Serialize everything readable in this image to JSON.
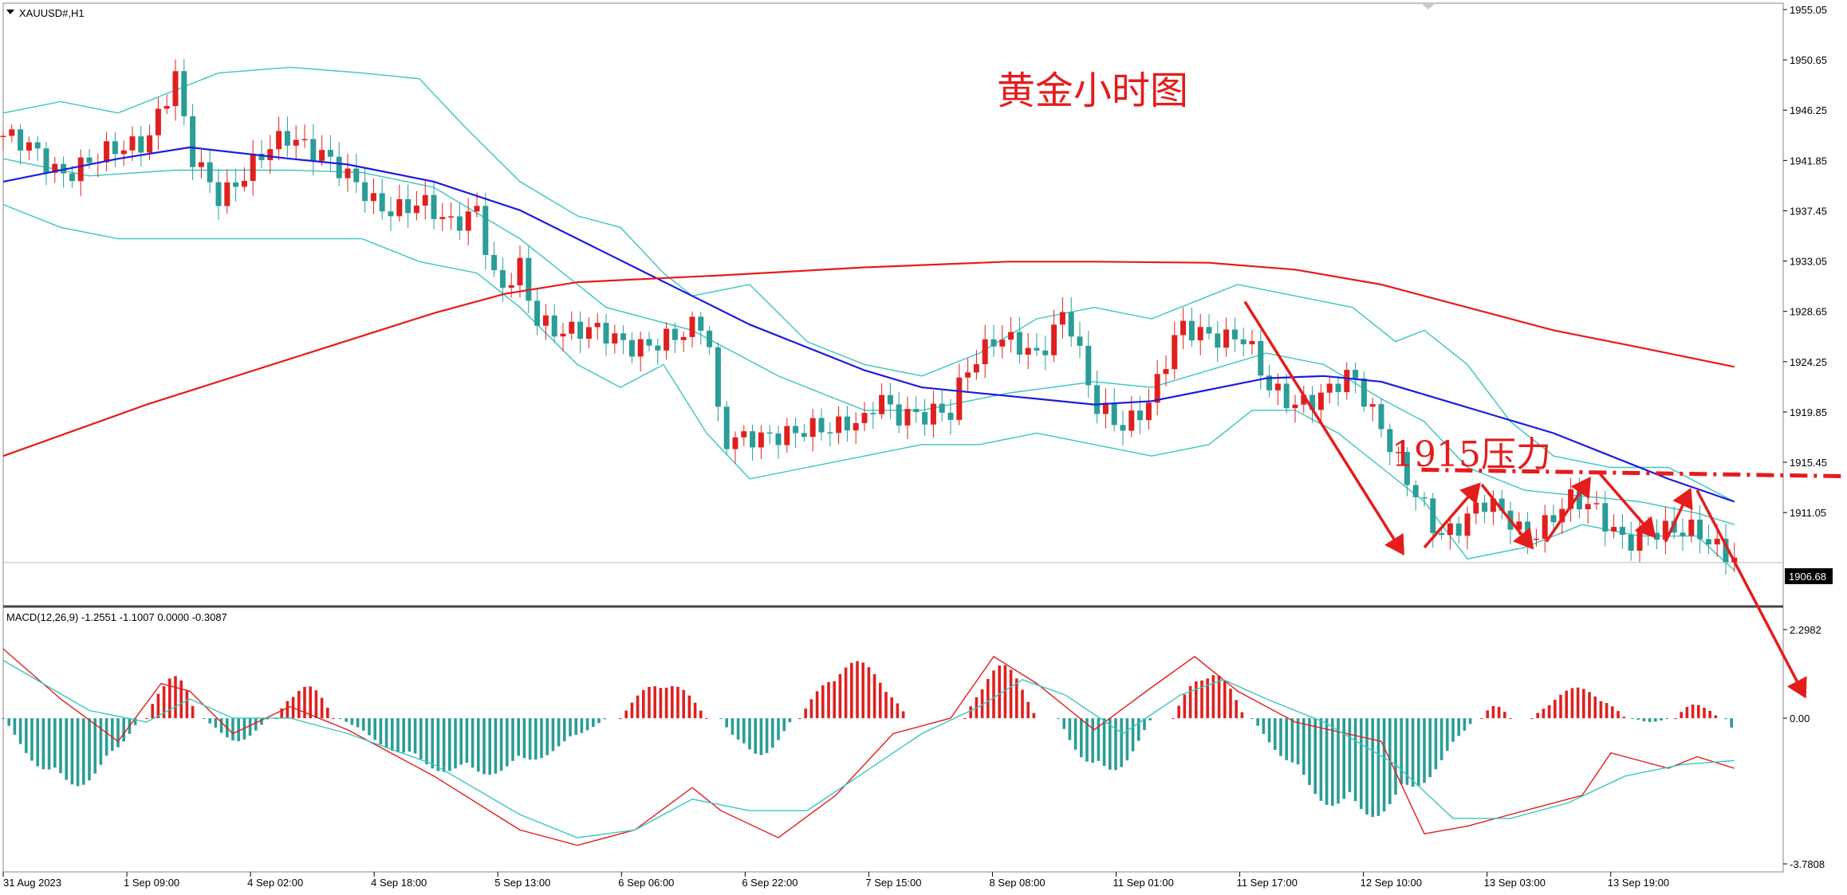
{
  "header": {
    "symbol_label": "XAUUSD#,H1"
  },
  "annotations": {
    "title": "黄金小时图",
    "resistance_label": "1915压力"
  },
  "price_axis": {
    "ticks": [
      "1955.05",
      "1950.65",
      "1946.25",
      "1941.85",
      "1937.45",
      "1933.05",
      "1928.65",
      "1924.25",
      "1919.85",
      "1915.45",
      "1911.05"
    ],
    "current_price": "1906.68"
  },
  "macd": {
    "label": "MACD(12,26,9) -1.2551 -1.1007 0.0000 -0.3087",
    "ticks": [
      "2.2982",
      "0.00",
      "-3.7808"
    ]
  },
  "time_axis": {
    "ticks": [
      "31 Aug 2023",
      "1 Sep 09:00",
      "4 Sep 02:00",
      "4 Sep 18:00",
      "5 Sep 13:00",
      "6 Sep 06:00",
      "6 Sep 22:00",
      "7 Sep 15:00",
      "8 Sep 08:00",
      "11 Sep 01:00",
      "11 Sep 17:00",
      "12 Sep 10:00",
      "13 Sep 03:00",
      "13 Sep 19:00"
    ]
  },
  "colors": {
    "bull": "#e0201e",
    "bear": "#2a9d96",
    "ma_blue": "#1d1ae0",
    "ma_red": "#e51c1c",
    "bands": "#39c6c0",
    "arrows": "#e51c1c",
    "macd_signal": "#e51c1c",
    "macd_line": "#39c6c0"
  },
  "chart_data": {
    "type": "line",
    "symbol": "XAUUSD#",
    "timeframe": "H1",
    "y_range": [
      1904.3,
      1955.05
    ],
    "current_price": 1906.68,
    "resistance_level": 1915,
    "close_path": [
      [
        0,
        1944
      ],
      [
        40,
        1941
      ],
      [
        70,
        1942
      ],
      [
        100,
        1944
      ],
      [
        120,
        1949
      ],
      [
        130,
        1942
      ],
      [
        150,
        1939
      ],
      [
        180,
        1942
      ],
      [
        200,
        1944
      ],
      [
        220,
        1943
      ],
      [
        240,
        1940
      ],
      [
        260,
        1938
      ],
      [
        290,
        1938
      ],
      [
        310,
        1936
      ],
      [
        330,
        1938
      ],
      [
        345,
        1930
      ],
      [
        360,
        1932
      ],
      [
        370,
        1928
      ],
      [
        400,
        1927
      ],
      [
        430,
        1926
      ],
      [
        450,
        1926
      ],
      [
        470,
        1926
      ],
      [
        490,
        1928
      ],
      [
        500,
        1918
      ],
      [
        530,
        1917
      ],
      [
        560,
        1919
      ],
      [
        580,
        1918
      ],
      [
        600,
        1919
      ],
      [
        610,
        1922
      ],
      [
        620,
        1920
      ],
      [
        640,
        1919
      ],
      [
        660,
        1920
      ],
      [
        670,
        1924
      ],
      [
        690,
        1926
      ],
      [
        720,
        1925
      ],
      [
        740,
        1929
      ],
      [
        760,
        1920
      ],
      [
        780,
        1919
      ],
      [
        800,
        1921
      ],
      [
        820,
        1927
      ],
      [
        840,
        1927
      ],
      [
        865,
        1926
      ],
      [
        880,
        1922
      ],
      [
        900,
        1921
      ],
      [
        920,
        1921
      ],
      [
        940,
        1923
      ],
      [
        960,
        1919
      ],
      [
        980,
        1913
      ],
      [
        1000,
        1909
      ],
      [
        1030,
        1912
      ],
      [
        1060,
        1909
      ],
      [
        1090,
        1912
      ],
      [
        1110,
        1911
      ],
      [
        1130,
        1909
      ],
      [
        1160,
        1909
      ],
      [
        1180,
        1910
      ],
      [
        1206,
        1906.68
      ]
    ],
    "moving_averages": [
      {
        "color": "blue",
        "points": [
          [
            0,
            1940
          ],
          [
            80,
            1942
          ],
          [
            130,
            1943
          ],
          [
            200,
            1942
          ],
          [
            240,
            1941.5
          ],
          [
            300,
            1940
          ],
          [
            360,
            1937.5
          ],
          [
            400,
            1935
          ],
          [
            440,
            1932.5
          ],
          [
            480,
            1930
          ],
          [
            520,
            1927.5
          ],
          [
            560,
            1925.5
          ],
          [
            600,
            1923.5
          ],
          [
            640,
            1922
          ],
          [
            680,
            1921.5
          ],
          [
            720,
            1921
          ],
          [
            760,
            1920.5
          ],
          [
            800,
            1920.8
          ],
          [
            840,
            1921.8
          ],
          [
            880,
            1922.8
          ],
          [
            920,
            1923
          ],
          [
            960,
            1922.5
          ],
          [
            1000,
            1921
          ],
          [
            1040,
            1919.5
          ],
          [
            1080,
            1918
          ],
          [
            1120,
            1916
          ],
          [
            1160,
            1914
          ],
          [
            1206,
            1912
          ]
        ]
      },
      {
        "color": "red",
        "points": [
          [
            0,
            1916
          ],
          [
            100,
            1920.5
          ],
          [
            200,
            1924.5
          ],
          [
            300,
            1928.5
          ],
          [
            350,
            1930.2
          ],
          [
            400,
            1931.2
          ],
          [
            500,
            1931.8
          ],
          [
            600,
            1932.5
          ],
          [
            700,
            1933
          ],
          [
            760,
            1933
          ],
          [
            840,
            1932.9
          ],
          [
            900,
            1932.3
          ],
          [
            960,
            1931
          ],
          [
            1020,
            1929
          ],
          [
            1080,
            1927
          ],
          [
            1140,
            1925.5
          ],
          [
            1206,
            1923.8
          ]
        ]
      }
    ],
    "bollinger": [
      {
        "points": [
          [
            0,
            1946
          ],
          [
            40,
            1947
          ],
          [
            80,
            1946
          ],
          [
            120,
            1948
          ],
          [
            150,
            1949.5
          ],
          [
            200,
            1950
          ],
          [
            250,
            1949.5
          ],
          [
            290,
            1949
          ],
          [
            320,
            1945
          ],
          [
            360,
            1940
          ],
          [
            400,
            1937
          ],
          [
            430,
            1936
          ],
          [
            460,
            1932
          ],
          [
            480,
            1930
          ],
          [
            520,
            1931
          ],
          [
            560,
            1926
          ],
          [
            600,
            1924
          ],
          [
            640,
            1923
          ],
          [
            680,
            1925
          ],
          [
            720,
            1928
          ],
          [
            760,
            1929
          ],
          [
            800,
            1928
          ],
          [
            840,
            1930
          ],
          [
            860,
            1931
          ],
          [
            900,
            1930
          ],
          [
            940,
            1929
          ],
          [
            970,
            1926
          ],
          [
            990,
            1927
          ],
          [
            1020,
            1924
          ],
          [
            1050,
            1919
          ],
          [
            1080,
            1916
          ],
          [
            1120,
            1915
          ],
          [
            1160,
            1915
          ],
          [
            1206,
            1912
          ]
        ]
      },
      {
        "points": [
          [
            0,
            1938
          ],
          [
            40,
            1936
          ],
          [
            80,
            1935
          ],
          [
            120,
            1935
          ],
          [
            150,
            1935
          ],
          [
            200,
            1935
          ],
          [
            250,
            1935
          ],
          [
            290,
            1933
          ],
          [
            330,
            1932
          ],
          [
            360,
            1929
          ],
          [
            400,
            1924
          ],
          [
            430,
            1922
          ],
          [
            460,
            1924
          ],
          [
            490,
            1918
          ],
          [
            520,
            1914
          ],
          [
            560,
            1915
          ],
          [
            600,
            1916
          ],
          [
            640,
            1917
          ],
          [
            680,
            1917
          ],
          [
            720,
            1918
          ],
          [
            760,
            1917
          ],
          [
            800,
            1916
          ],
          [
            840,
            1917
          ],
          [
            870,
            1920
          ],
          [
            900,
            1920
          ],
          [
            930,
            1918
          ],
          [
            960,
            1915
          ],
          [
            990,
            1912
          ],
          [
            1020,
            1907
          ],
          [
            1060,
            1908
          ],
          [
            1100,
            1910
          ],
          [
            1140,
            1909
          ],
          [
            1180,
            1909
          ],
          [
            1206,
            1906
          ]
        ]
      },
      {
        "points": [
          [
            0,
            1942
          ],
          [
            60,
            1940.5
          ],
          [
            120,
            1941
          ],
          [
            200,
            1941
          ],
          [
            250,
            1940.8
          ],
          [
            300,
            1939.5
          ],
          [
            360,
            1935
          ],
          [
            420,
            1929
          ],
          [
            480,
            1927
          ],
          [
            540,
            1923
          ],
          [
            600,
            1920
          ],
          [
            640,
            1920
          ],
          [
            700,
            1921.5
          ],
          [
            760,
            1922.5
          ],
          [
            800,
            1922
          ],
          [
            840,
            1923.5
          ],
          [
            880,
            1925
          ],
          [
            920,
            1924
          ],
          [
            960,
            1921
          ],
          [
            990,
            1919
          ],
          [
            1020,
            1915
          ],
          [
            1060,
            1913
          ],
          [
            1100,
            1912.5
          ],
          [
            1140,
            1912
          ],
          [
            1180,
            1911
          ],
          [
            1206,
            1910
          ]
        ]
      }
    ],
    "arrows": [
      {
        "from": [
          865,
          1929.5
        ],
        "to": [
          975,
          1907.5
        ]
      },
      {
        "from": [
          990,
          1908
        ],
        "to": [
          1028,
          1913.5
        ]
      },
      {
        "from": [
          1030,
          1913.5
        ],
        "to": [
          1065,
          1908
        ]
      },
      {
        "from": [
          1075,
          1908.5
        ],
        "to": [
          1105,
          1914
        ]
      },
      {
        "from": [
          1112,
          1914.5
        ],
        "to": [
          1150,
          1909
        ]
      },
      {
        "from": [
          1158,
          1908.5
        ],
        "to": [
          1175,
          1913
        ]
      },
      {
        "from": [
          1180,
          1913
        ],
        "to": [
          1255,
          1895
        ]
      }
    ],
    "resistance_line": {
      "from": [
        988,
        1914.8
      ],
      "to": [
        1350,
        1914.1
      ]
    },
    "macd": {
      "y_range": [
        -3.7808,
        2.2982
      ],
      "histogram_positive_ranges": [
        [
          100,
          135,
          1.2
        ],
        [
          190,
          230,
          0.9
        ],
        [
          430,
          490,
          1.0
        ],
        [
          555,
          630,
          1.5
        ],
        [
          670,
          720,
          1.4
        ],
        [
          815,
          865,
          1.3
        ],
        [
          1030,
          1050,
          0.35
        ],
        [
          1065,
          1130,
          0.8
        ],
        [
          1165,
          1195,
          0.4
        ]
      ],
      "histogram_negative_ranges": [
        [
          0,
          95,
          -1.8
        ],
        [
          140,
          185,
          -0.6
        ],
        [
          235,
          420,
          -1.5
        ],
        [
          500,
          550,
          -1.0
        ],
        [
          735,
          800,
          -1.5
        ],
        [
          870,
          1025,
          -2.6
        ],
        [
          1135,
          1160,
          -0.1
        ],
        [
          1200,
          1206,
          -0.3
        ]
      ],
      "signal": [
        [
          0,
          1.8
        ],
        [
          40,
          0.5
        ],
        [
          80,
          -0.6
        ],
        [
          110,
          0.9
        ],
        [
          130,
          0.7
        ],
        [
          160,
          -0.4
        ],
        [
          200,
          0.3
        ],
        [
          240,
          -0.3
        ],
        [
          300,
          -1.5
        ],
        [
          360,
          -2.9
        ],
        [
          400,
          -3.3
        ],
        [
          440,
          -2.9
        ],
        [
          480,
          -1.8
        ],
        [
          500,
          -2.4
        ],
        [
          540,
          -3.1
        ],
        [
          580,
          -2.0
        ],
        [
          620,
          -0.4
        ],
        [
          660,
          0.0
        ],
        [
          690,
          1.6
        ],
        [
          720,
          0.9
        ],
        [
          760,
          -0.3
        ],
        [
          800,
          0.8
        ],
        [
          830,
          1.6
        ],
        [
          860,
          0.7
        ],
        [
          900,
          -0.1
        ],
        [
          960,
          -0.6
        ],
        [
          990,
          -3.0
        ],
        [
          1020,
          -2.8
        ],
        [
          1060,
          -2.4
        ],
        [
          1100,
          -2.0
        ],
        [
          1120,
          -0.9
        ],
        [
          1160,
          -1.3
        ],
        [
          1180,
          -1.0
        ],
        [
          1206,
          -1.3
        ]
      ],
      "main": [
        [
          0,
          1.5
        ],
        [
          60,
          0.2
        ],
        [
          100,
          -0.1
        ],
        [
          130,
          0.5
        ],
        [
          160,
          0.0
        ],
        [
          200,
          0.0
        ],
        [
          240,
          -0.4
        ],
        [
          300,
          -1.2
        ],
        [
          360,
          -2.5
        ],
        [
          400,
          -3.1
        ],
        [
          440,
          -2.9
        ],
        [
          480,
          -2.1
        ],
        [
          520,
          -2.4
        ],
        [
          560,
          -2.4
        ],
        [
          600,
          -1.4
        ],
        [
          640,
          -0.4
        ],
        [
          680,
          0.3
        ],
        [
          710,
          1.0
        ],
        [
          740,
          0.6
        ],
        [
          780,
          -0.4
        ],
        [
          820,
          0.6
        ],
        [
          850,
          1.0
        ],
        [
          880,
          0.5
        ],
        [
          920,
          -0.1
        ],
        [
          970,
          -1.2
        ],
        [
          1010,
          -2.6
        ],
        [
          1050,
          -2.6
        ],
        [
          1090,
          -2.2
        ],
        [
          1130,
          -1.5
        ],
        [
          1170,
          -1.2
        ],
        [
          1206,
          -1.1
        ]
      ]
    }
  }
}
